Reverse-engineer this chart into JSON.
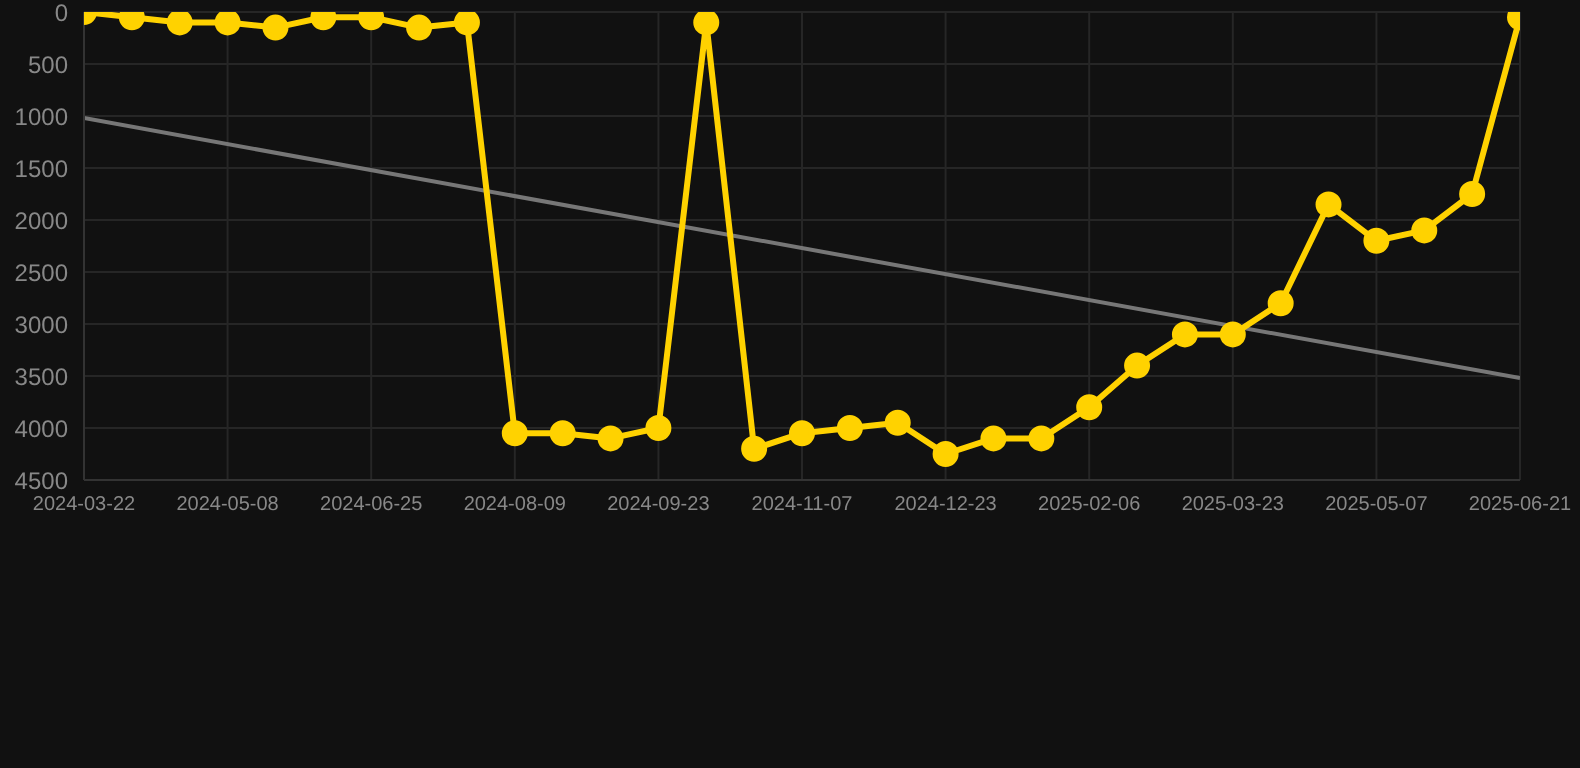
{
  "chart_data": {
    "type": "line",
    "categories": [
      "2024-03-22",
      null,
      null,
      "2024-05-08",
      null,
      null,
      "2024-06-25",
      null,
      null,
      "2024-08-09",
      null,
      null,
      "2024-09-23",
      null,
      null,
      "2024-11-07",
      null,
      null,
      "2024-12-23",
      null,
      null,
      "2025-02-06",
      null,
      null,
      "2025-03-23",
      null,
      null,
      "2025-05-07",
      null,
      null,
      "2025-06-21"
    ],
    "series": [
      {
        "color": "#ffd200",
        "marker": "circle",
        "values": [
          0,
          50,
          100,
          100,
          150,
          50,
          50,
          150,
          100,
          4050,
          4050,
          4100,
          4000,
          100,
          4200,
          4050,
          4000,
          3950,
          4250,
          4100,
          4100,
          3800,
          3400,
          3100,
          3100,
          2800,
          1850,
          2200,
          2100,
          1750,
          50
        ]
      },
      {
        "color": "#777777",
        "marker": "none",
        "values": [
          1020,
          null,
          null,
          null,
          null,
          null,
          null,
          null,
          null,
          null,
          null,
          null,
          null,
          null,
          null,
          null,
          null,
          null,
          null,
          null,
          null,
          null,
          null,
          null,
          null,
          null,
          null,
          null,
          null,
          null,
          3520
        ]
      }
    ],
    "ylim": [
      4500,
      0
    ],
    "yticks": [
      0,
      500,
      1000,
      1500,
      2000,
      2500,
      3000,
      3500,
      4000,
      4500
    ],
    "grid": true
  }
}
